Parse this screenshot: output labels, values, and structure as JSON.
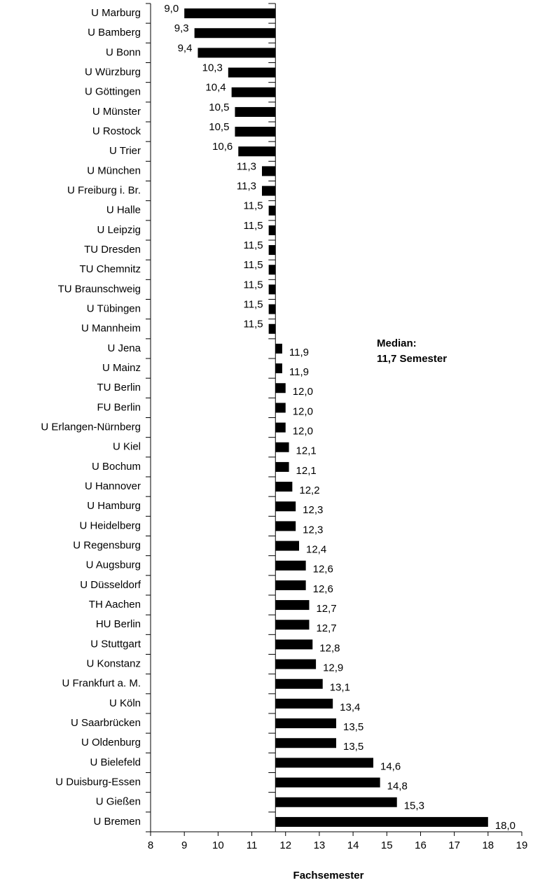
{
  "chart_data": {
    "type": "bar",
    "orientation": "horizontal",
    "categories": [
      "U Marburg",
      "U Bamberg",
      "U Bonn",
      "U Würzburg",
      "U Göttingen",
      "U Münster",
      "U Rostock",
      "U Trier",
      "U München",
      "U Freiburg i. Br.",
      "U Halle",
      "U Leipzig",
      "TU Dresden",
      "TU Chemnitz",
      "TU Braunschweig",
      "U Tübingen",
      "U Mannheim",
      "U Jena",
      "U Mainz",
      "TU Berlin",
      "FU Berlin",
      "U Erlangen-Nürnberg",
      "U Kiel",
      "U Bochum",
      "U Hannover",
      "U Hamburg",
      "U Heidelberg",
      "U Regensburg",
      "U Augsburg",
      "U Düsseldorf",
      "TH Aachen",
      "HU Berlin",
      "U Stuttgart",
      "U Konstanz",
      "U Frankfurt a. M.",
      "U Köln",
      "U Saarbrücken",
      "U Oldenburg",
      "U Bielefeld",
      "U Duisburg-Essen",
      "U Gießen",
      "U Bremen"
    ],
    "values": [
      9.0,
      9.3,
      9.4,
      10.3,
      10.4,
      10.5,
      10.5,
      10.6,
      11.3,
      11.3,
      11.5,
      11.5,
      11.5,
      11.5,
      11.5,
      11.5,
      11.5,
      11.9,
      11.9,
      12.0,
      12.0,
      12.0,
      12.1,
      12.1,
      12.2,
      12.3,
      12.3,
      12.4,
      12.6,
      12.6,
      12.7,
      12.7,
      12.8,
      12.9,
      13.1,
      13.4,
      13.5,
      13.5,
      14.6,
      14.8,
      15.3,
      18.0
    ],
    "value_labels": [
      "9,0",
      "9,3",
      "9,4",
      "10,3",
      "10,4",
      "10,5",
      "10,5",
      "10,6",
      "11,3",
      "11,3",
      "11,5",
      "11,5",
      "11,5",
      "11,5",
      "11,5",
      "11,5",
      "11,5",
      "11,9",
      "11,9",
      "12,0",
      "12,0",
      "12,0",
      "12,1",
      "12,1",
      "12,2",
      "12,3",
      "12,3",
      "12,4",
      "12,6",
      "12,6",
      "12,7",
      "12,7",
      "12,8",
      "12,9",
      "13,1",
      "13,4",
      "13,5",
      "13,5",
      "14,6",
      "14,8",
      "15,3",
      "18,0"
    ],
    "baseline": 11.7,
    "color": "#000000",
    "annotation": [
      "Median:",
      "11,7 Semester"
    ],
    "xlabel": "Fachsemester",
    "xlim": [
      8,
      19
    ],
    "xticks": [
      8,
      9,
      10,
      11,
      12,
      13,
      14,
      15,
      16,
      17,
      18,
      19
    ]
  }
}
